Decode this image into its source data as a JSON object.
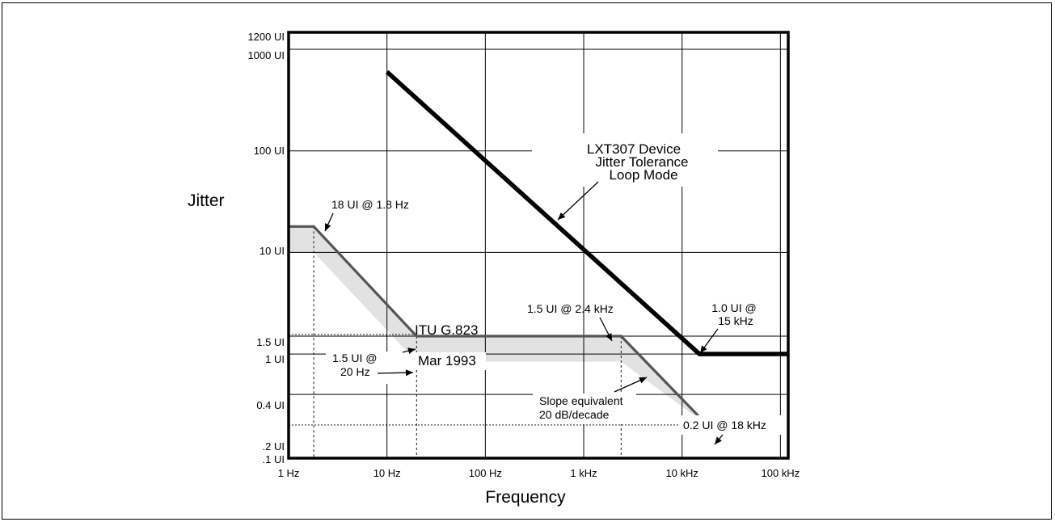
{
  "chart_data": {
    "type": "line",
    "title": "",
    "xlabel": "Frequency",
    "ylabel": "Jitter",
    "x_scale": "log",
    "y_scale": "log",
    "xlim": [
      1,
      120000
    ],
    "ylim": [
      0.1,
      1200
    ],
    "x_ticks": [
      {
        "value": 1,
        "label": "1 Hz"
      },
      {
        "value": 10,
        "label": "10 Hz"
      },
      {
        "value": 100,
        "label": "100 Hz"
      },
      {
        "value": 1000,
        "label": "1 kHz"
      },
      {
        "value": 10000,
        "label": "10 kHz"
      },
      {
        "value": 100000,
        "label": "100 kHz"
      }
    ],
    "y_ticks": [
      {
        "value": 1200,
        "label": "1200 UI"
      },
      {
        "value": 1000,
        "label": "1000 UI"
      },
      {
        "value": 100,
        "label": "100 UI"
      },
      {
        "value": 10,
        "label": "10 UI"
      },
      {
        "value": 1.5,
        "label": "1.5 UI"
      },
      {
        "value": 1,
        "label": "1 UI"
      },
      {
        "value": 0.4,
        "label": "0.4 UI"
      },
      {
        "value": 0.2,
        "label": ".2 UI"
      },
      {
        "value": 0.1,
        "label": ".1 UI"
      }
    ],
    "grid": true,
    "series": [
      {
        "name": "LXT307 Device Jitter Tolerance Loop Mode",
        "color": "#000000",
        "points": [
          [
            10,
            600
          ],
          [
            15000,
            1.0
          ],
          [
            120000,
            1.0
          ]
        ]
      },
      {
        "name": "ITU G.823 Mar 1993",
        "color": "#555555",
        "points": [
          [
            1,
            18
          ],
          [
            1.8,
            18
          ],
          [
            20,
            1.5
          ],
          [
            2400,
            1.5
          ],
          [
            18000,
            0.2
          ],
          [
            120000,
            0.19
          ]
        ]
      }
    ],
    "tolerance_band": {
      "color": "#e2e2e2",
      "upper": [
        [
          1,
          18
        ],
        [
          1.8,
          18
        ],
        [
          20,
          1.5
        ],
        [
          2400,
          1.5
        ],
        [
          18000,
          0.2
        ]
      ],
      "lower": [
        [
          1,
          10
        ],
        [
          1.8,
          10
        ],
        [
          20,
          0.84
        ],
        [
          2400,
          0.84
        ],
        [
          18000,
          0.2
        ]
      ]
    },
    "annotations": {
      "lxt_label": [
        "LXT307 Device",
        "Jitter Tolerance",
        "Loop Mode"
      ],
      "itu_label": [
        "ITU G.823",
        "Mar 1993"
      ],
      "a_18ui": "18 UI @ 1.8 Hz",
      "a_15ui_20hz": [
        "1.5 UI @",
        "20 Hz"
      ],
      "a_15ui_24k": "1.5 UI @ 2.4 kHz",
      "a_10ui_15k": [
        "1.0 UI @",
        "15 kHz"
      ],
      "a_02ui_18k": "0.2 UI @ 18 kHz",
      "slope": [
        "Slope equivalent",
        "20 dB/decade"
      ]
    }
  }
}
